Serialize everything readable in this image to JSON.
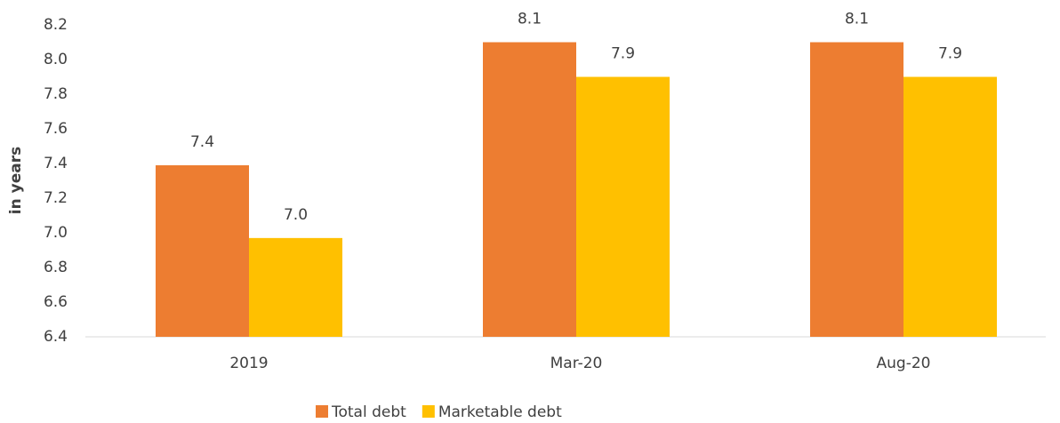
{
  "chart_data": {
    "type": "bar",
    "y_label": "in years",
    "categories": [
      "2019",
      "Mar-20",
      "Aug-20"
    ],
    "series": [
      {
        "name": "Total debt",
        "color": "#ED7D31",
        "values": [
          7.39,
          8.1,
          8.1
        ],
        "value_labels": [
          "7.4",
          "8.1",
          "8.1"
        ]
      },
      {
        "name": "Marketable debt",
        "color": "#FFC000",
        "values": [
          6.97,
          7.9,
          7.9
        ],
        "value_labels": [
          "7.0",
          "7.9",
          "7.9"
        ]
      }
    ],
    "ylim": [
      6.4,
      8.2
    ],
    "yticks": [
      6.4,
      6.6,
      6.8,
      {
        "value": 7,
        "label": "7.0"
      },
      7.2,
      7.4,
      7.6,
      7.8,
      {
        "value": 8,
        "label": "8.0"
      },
      8.2
    ],
    "grid": false,
    "legend": "bottom"
  }
}
